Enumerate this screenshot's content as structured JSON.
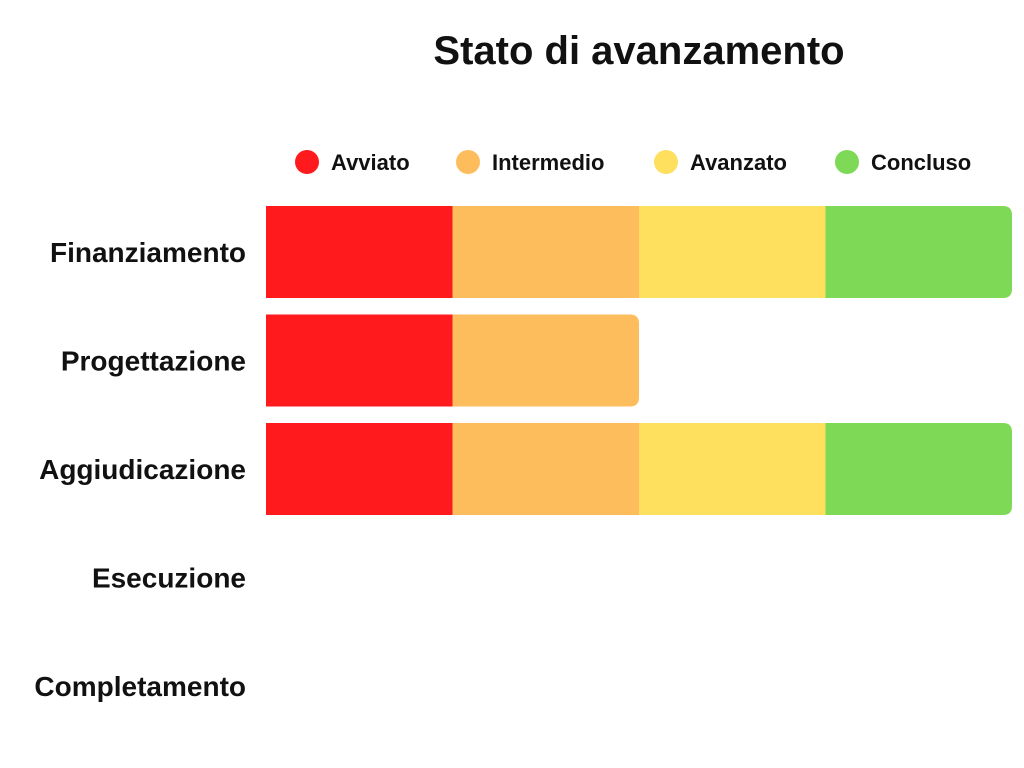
{
  "chart_data": {
    "type": "bar",
    "orientation": "horizontal",
    "stacked": true,
    "title": "Stato di avanzamento",
    "xlabel": "",
    "ylabel": "",
    "legend_position": "top",
    "grid": false,
    "xlim": [
      0,
      4
    ],
    "categories": [
      "Finanziamento",
      "Progettazione",
      "Aggiudicazione",
      "Esecuzione",
      "Completamento"
    ],
    "series": [
      {
        "name": "Avviato",
        "color": "#fe1a1d",
        "values": [
          1,
          1,
          1,
          0,
          0
        ]
      },
      {
        "name": "Intermedio",
        "color": "#fdbd5c",
        "values": [
          1,
          1,
          1,
          0,
          0
        ]
      },
      {
        "name": "Avanzato",
        "color": "#fedf5e",
        "values": [
          1,
          0,
          1,
          0,
          0
        ]
      },
      {
        "name": "Concluso",
        "color": "#7ed957",
        "values": [
          1,
          0,
          1,
          0,
          0
        ]
      }
    ]
  }
}
